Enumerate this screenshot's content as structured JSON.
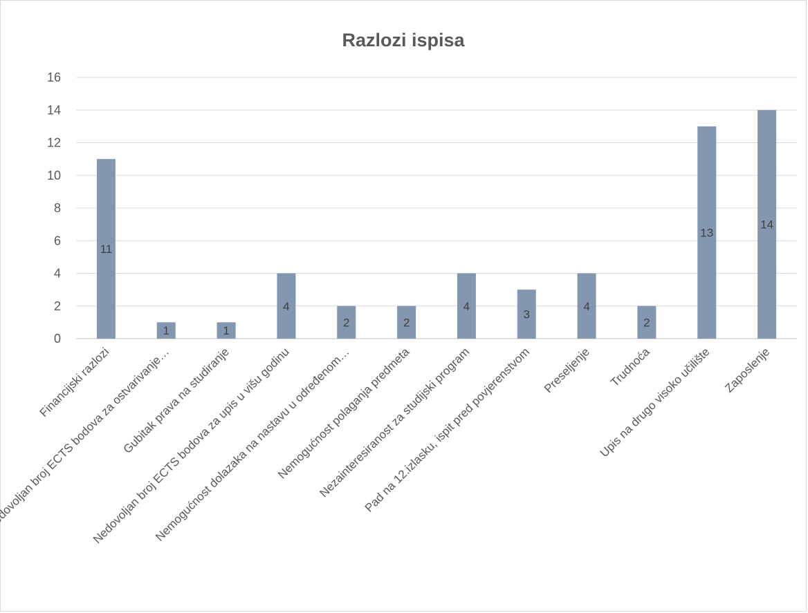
{
  "chart_data": {
    "type": "bar",
    "title": "Razlozi ispisa",
    "xlabel": "",
    "ylabel": "",
    "ylim": [
      0,
      16
    ],
    "yticks": [
      0,
      2,
      4,
      6,
      8,
      10,
      12,
      14,
      16
    ],
    "grid": true,
    "legend": "none",
    "categories": [
      "Financijski razlozi",
      "Nedovoljan broj ECTS bodova za ostvarivanje…",
      "Gubitak prava na studiranje",
      "Nedovoljan broj ECTS bodova za upis u višu godinu",
      "Nemogućnost dolazaka na nastavu u određenom…",
      "Nemogućnost polaganja predmeta",
      "Nezainteresiranost za studijski program",
      "Pad na 12.izlasku, ispit pred povjerenstvom",
      "Preseljenje",
      "Trudnoća",
      "Upis na drugo visoko učilište",
      "Zaposlenje"
    ],
    "values": [
      11,
      1,
      1,
      4,
      2,
      2,
      4,
      3,
      4,
      2,
      13,
      14
    ],
    "colors": {
      "bar": "#8497b0",
      "grid": "#d9d9d9",
      "axis": "#bfbfbf",
      "text": "#595959"
    }
  }
}
